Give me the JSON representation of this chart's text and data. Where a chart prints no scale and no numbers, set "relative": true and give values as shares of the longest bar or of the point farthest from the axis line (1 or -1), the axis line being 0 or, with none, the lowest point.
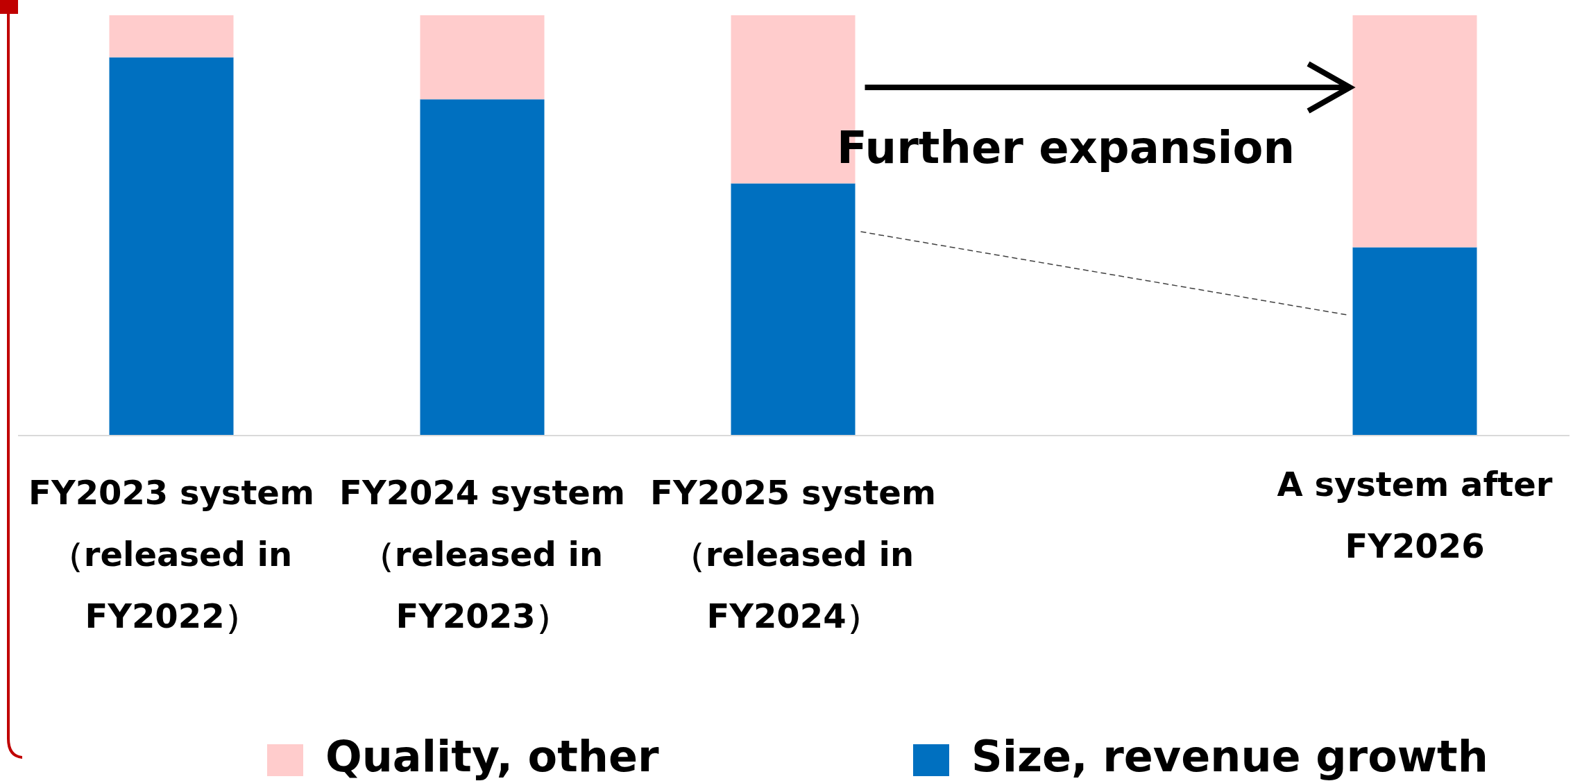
{
  "chart_data": {
    "type": "bar",
    "stacked": true,
    "relative": true,
    "legend": "bottom",
    "categories": [
      "FY2023 system\n（released in\nFY2022）",
      "FY2024 system\n（released in\nFY2023）",
      "FY2025 system\n（released in\nFY2024）",
      null,
      "A system after\nFY2026"
    ],
    "series": [
      {
        "name": "Size, revenue growth",
        "color": "#0070c0",
        "values": [
          0.9,
          0.8,
          0.6,
          null,
          0.448
        ]
      },
      {
        "name": "Quality, other",
        "color": "#ffcccc",
        "values": [
          0.1,
          0.2,
          0.4,
          null,
          0.552
        ]
      }
    ],
    "annotations": [
      "Further expansion"
    ]
  }
}
